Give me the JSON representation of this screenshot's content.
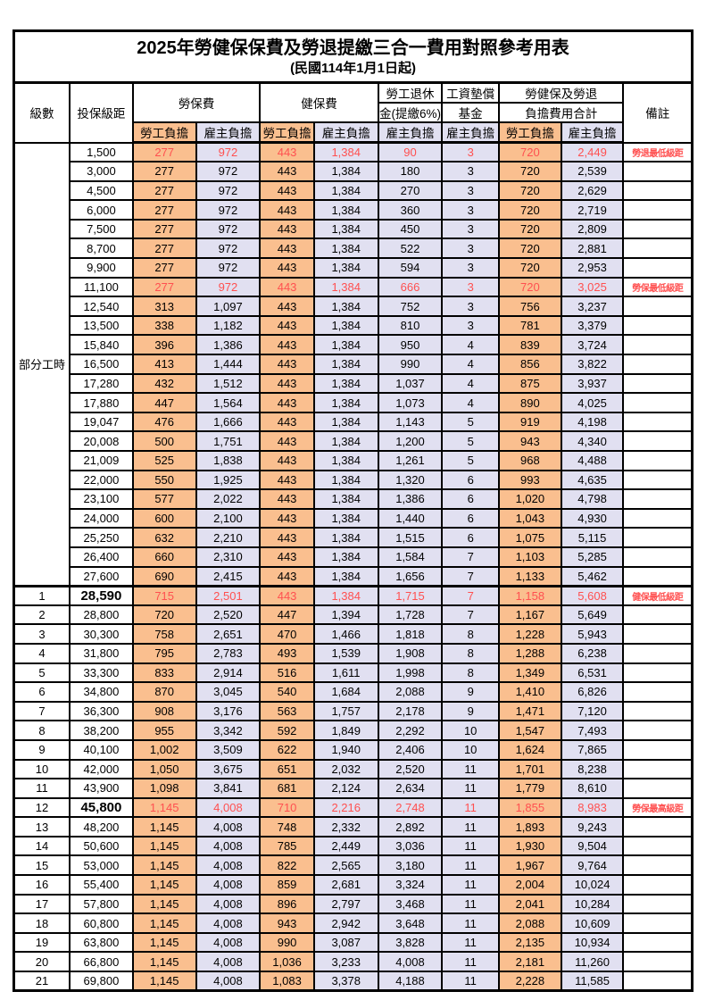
{
  "title": "2025年勞健保保費及勞退提繳三合一費用對照參考用表",
  "subtitle": "(民國114年1月1日起)",
  "header": {
    "col_level": "級數",
    "col_bracket": "投保級距",
    "group_labor": "勞保費",
    "group_health": "健保費",
    "group_pension_line1": "勞工退休",
    "group_pension_line2": "金(提繳6%)",
    "group_wage_line1": "工資墊償",
    "group_wage_line2": "基金",
    "group_total_line1": "勞健保及勞退",
    "group_total_line2": "負擔費用合計",
    "col_remark": "備註",
    "sub_employee": "勞工負擔",
    "sub_employer": "雇主負擔"
  },
  "colors": {
    "employee_bg": "#FABF8F",
    "employer_bg": "#E1E0F1",
    "highlight_text": "#FF5050",
    "border": "#000000"
  },
  "table": {
    "part_time_label": "部分工時",
    "part_time_span": 23,
    "shade_pattern": [
      "e",
      "r",
      "e",
      "r",
      "r",
      "r",
      "e",
      "r"
    ],
    "rows": [
      {
        "level": "",
        "bracket": "1,500",
        "cells": [
          "277",
          "972",
          "443",
          "1,384",
          "90",
          "3",
          "720",
          "2,449"
        ],
        "remark": "勞退最低級距",
        "highlight": true
      },
      {
        "level": "",
        "bracket": "3,000",
        "cells": [
          "277",
          "972",
          "443",
          "1,384",
          "180",
          "3",
          "720",
          "2,539"
        ],
        "remark": ""
      },
      {
        "level": "",
        "bracket": "4,500",
        "cells": [
          "277",
          "972",
          "443",
          "1,384",
          "270",
          "3",
          "720",
          "2,629"
        ],
        "remark": ""
      },
      {
        "level": "",
        "bracket": "6,000",
        "cells": [
          "277",
          "972",
          "443",
          "1,384",
          "360",
          "3",
          "720",
          "2,719"
        ],
        "remark": ""
      },
      {
        "level": "",
        "bracket": "7,500",
        "cells": [
          "277",
          "972",
          "443",
          "1,384",
          "450",
          "3",
          "720",
          "2,809"
        ],
        "remark": ""
      },
      {
        "level": "",
        "bracket": "8,700",
        "cells": [
          "277",
          "972",
          "443",
          "1,384",
          "522",
          "3",
          "720",
          "2,881"
        ],
        "remark": ""
      },
      {
        "level": "",
        "bracket": "9,900",
        "cells": [
          "277",
          "972",
          "443",
          "1,384",
          "594",
          "3",
          "720",
          "2,953"
        ],
        "remark": ""
      },
      {
        "level": "",
        "bracket": "11,100",
        "cells": [
          "277",
          "972",
          "443",
          "1,384",
          "666",
          "3",
          "720",
          "3,025"
        ],
        "remark": "勞保最低級距",
        "highlight": true
      },
      {
        "level": "",
        "bracket": "12,540",
        "cells": [
          "313",
          "1,097",
          "443",
          "1,384",
          "752",
          "3",
          "756",
          "3,237"
        ],
        "remark": ""
      },
      {
        "level": "",
        "bracket": "13,500",
        "cells": [
          "338",
          "1,182",
          "443",
          "1,384",
          "810",
          "3",
          "781",
          "3,379"
        ],
        "remark": ""
      },
      {
        "level": "",
        "bracket": "15,840",
        "cells": [
          "396",
          "1,386",
          "443",
          "1,384",
          "950",
          "4",
          "839",
          "3,724"
        ],
        "remark": ""
      },
      {
        "level": "",
        "bracket": "16,500",
        "cells": [
          "413",
          "1,444",
          "443",
          "1,384",
          "990",
          "4",
          "856",
          "3,822"
        ],
        "remark": ""
      },
      {
        "level": "",
        "bracket": "17,280",
        "cells": [
          "432",
          "1,512",
          "443",
          "1,384",
          "1,037",
          "4",
          "875",
          "3,937"
        ],
        "remark": ""
      },
      {
        "level": "",
        "bracket": "17,880",
        "cells": [
          "447",
          "1,564",
          "443",
          "1,384",
          "1,073",
          "4",
          "890",
          "4,025"
        ],
        "remark": ""
      },
      {
        "level": "",
        "bracket": "19,047",
        "cells": [
          "476",
          "1,666",
          "443",
          "1,384",
          "1,143",
          "5",
          "919",
          "4,198"
        ],
        "remark": ""
      },
      {
        "level": "",
        "bracket": "20,008",
        "cells": [
          "500",
          "1,751",
          "443",
          "1,384",
          "1,200",
          "5",
          "943",
          "4,340"
        ],
        "remark": ""
      },
      {
        "level": "",
        "bracket": "21,009",
        "cells": [
          "525",
          "1,838",
          "443",
          "1,384",
          "1,261",
          "5",
          "968",
          "4,488"
        ],
        "remark": ""
      },
      {
        "level": "",
        "bracket": "22,000",
        "cells": [
          "550",
          "1,925",
          "443",
          "1,384",
          "1,320",
          "6",
          "993",
          "4,635"
        ],
        "remark": ""
      },
      {
        "level": "",
        "bracket": "23,100",
        "cells": [
          "577",
          "2,022",
          "443",
          "1,384",
          "1,386",
          "6",
          "1,020",
          "4,798"
        ],
        "remark": ""
      },
      {
        "level": "",
        "bracket": "24,000",
        "cells": [
          "600",
          "2,100",
          "443",
          "1,384",
          "1,440",
          "6",
          "1,043",
          "4,930"
        ],
        "remark": ""
      },
      {
        "level": "",
        "bracket": "25,250",
        "cells": [
          "632",
          "2,210",
          "443",
          "1,384",
          "1,515",
          "6",
          "1,075",
          "5,115"
        ],
        "remark": ""
      },
      {
        "level": "",
        "bracket": "26,400",
        "cells": [
          "660",
          "2,310",
          "443",
          "1,384",
          "1,584",
          "7",
          "1,103",
          "5,285"
        ],
        "remark": ""
      },
      {
        "level": "",
        "bracket": "27,600",
        "cells": [
          "690",
          "2,415",
          "443",
          "1,384",
          "1,656",
          "7",
          "1,133",
          "5,462"
        ],
        "remark": ""
      },
      {
        "level": "1",
        "bracket": "28,590",
        "cells": [
          "715",
          "2,501",
          "443",
          "1,384",
          "1,715",
          "7",
          "1,158",
          "5,608"
        ],
        "remark": "健保最低級距",
        "highlight": true,
        "bold_bracket": true,
        "section_start": true
      },
      {
        "level": "2",
        "bracket": "28,800",
        "cells": [
          "720",
          "2,520",
          "447",
          "1,394",
          "1,728",
          "7",
          "1,167",
          "5,649"
        ],
        "remark": ""
      },
      {
        "level": "3",
        "bracket": "30,300",
        "cells": [
          "758",
          "2,651",
          "470",
          "1,466",
          "1,818",
          "8",
          "1,228",
          "5,943"
        ],
        "remark": ""
      },
      {
        "level": "4",
        "bracket": "31,800",
        "cells": [
          "795",
          "2,783",
          "493",
          "1,539",
          "1,908",
          "8",
          "1,288",
          "6,238"
        ],
        "remark": ""
      },
      {
        "level": "5",
        "bracket": "33,300",
        "cells": [
          "833",
          "2,914",
          "516",
          "1,611",
          "1,998",
          "8",
          "1,349",
          "6,531"
        ],
        "remark": ""
      },
      {
        "level": "6",
        "bracket": "34,800",
        "cells": [
          "870",
          "3,045",
          "540",
          "1,684",
          "2,088",
          "9",
          "1,410",
          "6,826"
        ],
        "remark": ""
      },
      {
        "level": "7",
        "bracket": "36,300",
        "cells": [
          "908",
          "3,176",
          "563",
          "1,757",
          "2,178",
          "9",
          "1,471",
          "7,120"
        ],
        "remark": ""
      },
      {
        "level": "8",
        "bracket": "38,200",
        "cells": [
          "955",
          "3,342",
          "592",
          "1,849",
          "2,292",
          "10",
          "1,547",
          "7,493"
        ],
        "remark": ""
      },
      {
        "level": "9",
        "bracket": "40,100",
        "cells": [
          "1,002",
          "3,509",
          "622",
          "1,940",
          "2,406",
          "10",
          "1,624",
          "7,865"
        ],
        "remark": ""
      },
      {
        "level": "10",
        "bracket": "42,000",
        "cells": [
          "1,050",
          "3,675",
          "651",
          "2,032",
          "2,520",
          "11",
          "1,701",
          "8,238"
        ],
        "remark": ""
      },
      {
        "level": "11",
        "bracket": "43,900",
        "cells": [
          "1,098",
          "3,841",
          "681",
          "2,124",
          "2,634",
          "11",
          "1,779",
          "8,610"
        ],
        "remark": ""
      },
      {
        "level": "12",
        "bracket": "45,800",
        "cells": [
          "1,145",
          "4,008",
          "710",
          "2,216",
          "2,748",
          "11",
          "1,855",
          "8,983"
        ],
        "remark": "勞保最高級距",
        "highlight": true,
        "bold_bracket": true
      },
      {
        "level": "13",
        "bracket": "48,200",
        "cells": [
          "1,145",
          "4,008",
          "748",
          "2,332",
          "2,892",
          "11",
          "1,893",
          "9,243"
        ],
        "remark": ""
      },
      {
        "level": "14",
        "bracket": "50,600",
        "cells": [
          "1,145",
          "4,008",
          "785",
          "2,449",
          "3,036",
          "11",
          "1,930",
          "9,504"
        ],
        "remark": ""
      },
      {
        "level": "15",
        "bracket": "53,000",
        "cells": [
          "1,145",
          "4,008",
          "822",
          "2,565",
          "3,180",
          "11",
          "1,967",
          "9,764"
        ],
        "remark": ""
      },
      {
        "level": "16",
        "bracket": "55,400",
        "cells": [
          "1,145",
          "4,008",
          "859",
          "2,681",
          "3,324",
          "11",
          "2,004",
          "10,024"
        ],
        "remark": ""
      },
      {
        "level": "17",
        "bracket": "57,800",
        "cells": [
          "1,145",
          "4,008",
          "896",
          "2,797",
          "3,468",
          "11",
          "2,041",
          "10,284"
        ],
        "remark": ""
      },
      {
        "level": "18",
        "bracket": "60,800",
        "cells": [
          "1,145",
          "4,008",
          "943",
          "2,942",
          "3,648",
          "11",
          "2,088",
          "10,609"
        ],
        "remark": ""
      },
      {
        "level": "19",
        "bracket": "63,800",
        "cells": [
          "1,145",
          "4,008",
          "990",
          "3,087",
          "3,828",
          "11",
          "2,135",
          "10,934"
        ],
        "remark": ""
      },
      {
        "level": "20",
        "bracket": "66,800",
        "cells": [
          "1,145",
          "4,008",
          "1,036",
          "3,233",
          "4,008",
          "11",
          "2,181",
          "11,260"
        ],
        "remark": ""
      },
      {
        "level": "21",
        "bracket": "69,800",
        "cells": [
          "1,145",
          "4,008",
          "1,083",
          "3,378",
          "4,188",
          "11",
          "2,228",
          "11,585"
        ],
        "remark": ""
      }
    ]
  }
}
